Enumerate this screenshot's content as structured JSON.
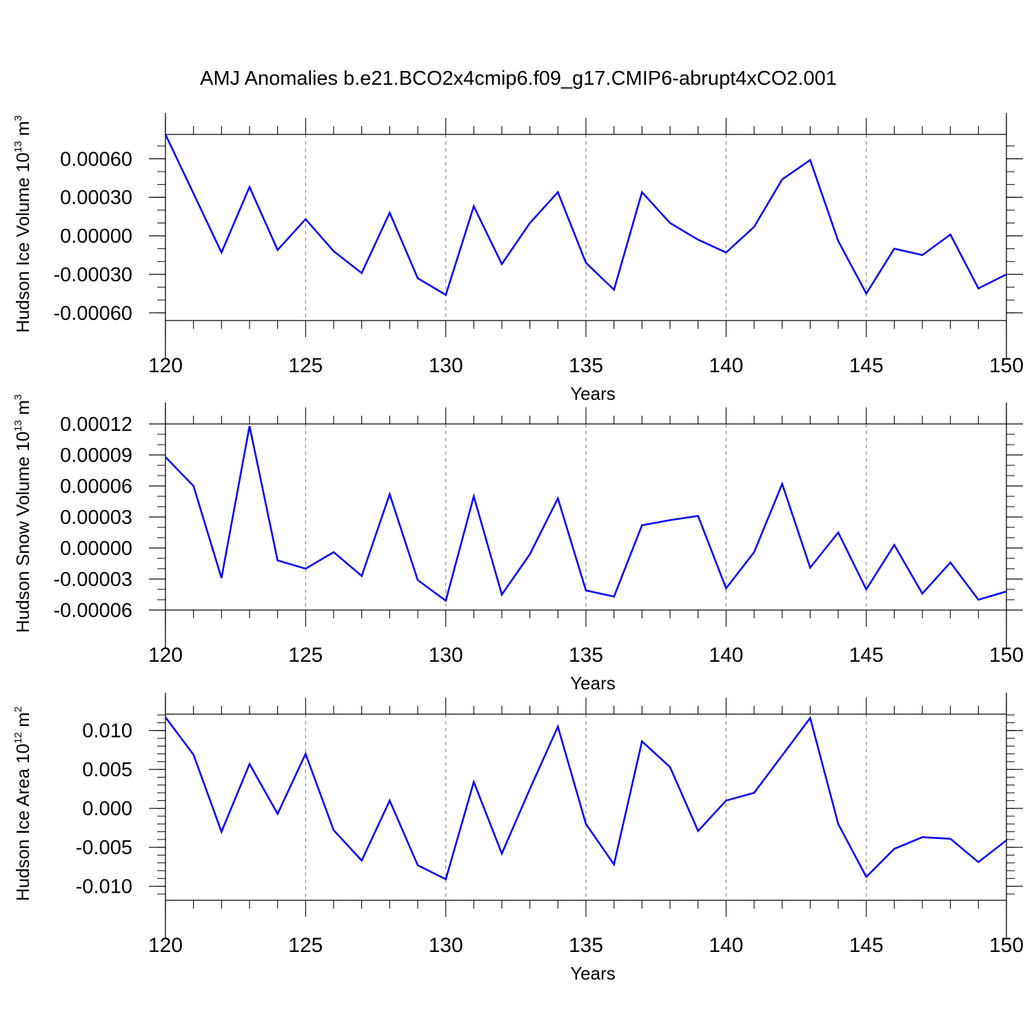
{
  "figure": {
    "title": "AMJ Anomalies b.e21.BCO2x4cmip6.f09_g17.CMIP6-abrupt4xCO2.001",
    "line_color": "#0000ff",
    "grid_color": "#888888"
  },
  "chart_data": [
    {
      "type": "line",
      "title": "AMJ Anomalies b.e21.BCO2x4cmip6.f09_g17.CMIP6-abrupt4xCO2.001",
      "xlabel": "Years",
      "ylabel": {
        "text": "Hudson Ice Volume 10",
        "sup": "13",
        "unit": " m",
        "unit_sup": "3"
      },
      "xlim": [
        120,
        150
      ],
      "ylim": [
        -0.00066,
        0.00079
      ],
      "xticks": [
        "120",
        "125",
        "130",
        "135",
        "140",
        "145",
        "150"
      ],
      "yticks": [
        {
          "value": 0.0006,
          "label": "0.00060"
        },
        {
          "value": 0.0003,
          "label": "0.00030"
        },
        {
          "value": 0.0,
          "label": "0.00000"
        },
        {
          "value": -0.0003,
          "label": "-0.00030"
        },
        {
          "value": -0.0006,
          "label": "-0.00060"
        }
      ],
      "y_minor_step": 0.0001,
      "grid": "x-dashed",
      "x": [
        120,
        121,
        122,
        123,
        124,
        125,
        126,
        127,
        128,
        129,
        130,
        131,
        132,
        133,
        134,
        135,
        136,
        137,
        138,
        139,
        140,
        141,
        142,
        143,
        144,
        145,
        146,
        147,
        148,
        149,
        150
      ],
      "series": [
        {
          "values": [
            0.00079,
            0.00033,
            -0.00013,
            0.00038,
            -0.00011,
            0.00013,
            -0.00012,
            -0.00029,
            0.00018,
            -0.00033,
            -0.00046,
            0.00023,
            -0.00022,
            0.0001,
            0.00034,
            -0.00021,
            -0.00042,
            0.00034,
            0.0001,
            -3e-05,
            -0.00013,
            7e-05,
            0.00044,
            0.00059,
            -4e-05,
            -0.00045,
            -0.0001,
            -0.00015,
            1e-05,
            -0.00041,
            -0.0003
          ]
        }
      ]
    },
    {
      "type": "line",
      "xlabel": "Years",
      "ylabel": {
        "text": "Hudson Snow Volume 10",
        "sup": "13",
        "unit": " m",
        "unit_sup": "3"
      },
      "xlim": [
        120,
        150
      ],
      "ylim": [
        -6e-05,
        0.00012
      ],
      "xticks": [
        "120",
        "125",
        "130",
        "135",
        "140",
        "145",
        "150"
      ],
      "yticks": [
        {
          "value": 0.00012,
          "label": "0.00012"
        },
        {
          "value": 9e-05,
          "label": "0.00009"
        },
        {
          "value": 6e-05,
          "label": "0.00006"
        },
        {
          "value": 3e-05,
          "label": "0.00003"
        },
        {
          "value": 0.0,
          "label": "0.00000"
        },
        {
          "value": -3e-05,
          "label": "-0.00003"
        },
        {
          "value": -6e-05,
          "label": "-0.00006"
        }
      ],
      "y_minor_step": 1e-05,
      "grid": "x-dashed",
      "x": [
        120,
        121,
        122,
        123,
        124,
        125,
        126,
        127,
        128,
        129,
        130,
        131,
        132,
        133,
        134,
        135,
        136,
        137,
        138,
        139,
        140,
        141,
        142,
        143,
        144,
        145,
        146,
        147,
        148,
        149,
        150
      ],
      "series": [
        {
          "values": [
            8.8e-05,
            6e-05,
            -2.9e-05,
            0.000118,
            -1.2e-05,
            -2e-05,
            -4e-06,
            -2.7e-05,
            5.2e-05,
            -3.1e-05,
            -5.1e-05,
            5e-05,
            -4.5e-05,
            -6e-06,
            4.8e-05,
            -4.1e-05,
            -4.7e-05,
            2.2e-05,
            2.7e-05,
            3.1e-05,
            -3.9e-05,
            -4e-06,
            6.2e-05,
            -1.9e-05,
            1.5e-05,
            -4e-05,
            3e-06,
            -4.4e-05,
            -1.4e-05,
            -5e-05,
            -4.2e-05
          ]
        }
      ]
    },
    {
      "type": "line",
      "xlabel": "Years",
      "ylabel": {
        "text": "Hudson Ice Area 10",
        "sup": "12",
        "unit": " m",
        "unit_sup": "2"
      },
      "xlim": [
        120,
        150
      ],
      "ylim": [
        -0.0118,
        0.0121
      ],
      "xticks": [
        "120",
        "125",
        "130",
        "135",
        "140",
        "145",
        "150"
      ],
      "yticks": [
        {
          "value": 0.01,
          "label": "0.010"
        },
        {
          "value": 0.005,
          "label": "0.005"
        },
        {
          "value": 0.0,
          "label": "0.000"
        },
        {
          "value": -0.005,
          "label": "-0.005"
        },
        {
          "value": -0.01,
          "label": "-0.010"
        }
      ],
      "y_minor_step": 0.001,
      "grid": "x-dashed",
      "x": [
        120,
        121,
        122,
        123,
        124,
        125,
        126,
        127,
        128,
        129,
        130,
        131,
        132,
        133,
        134,
        135,
        136,
        137,
        138,
        139,
        140,
        141,
        142,
        143,
        144,
        145,
        146,
        147,
        148,
        149,
        150
      ],
      "series": [
        {
          "values": [
            0.0117,
            0.0069,
            -0.003,
            0.0057,
            -0.0007,
            0.007,
            -0.0028,
            -0.0067,
            0.001,
            -0.0073,
            -0.0091,
            0.0034,
            -0.0058,
            0.0025,
            0.0105,
            -0.002,
            -0.0072,
            0.0086,
            0.0053,
            -0.0029,
            0.001,
            0.002,
            0.0068,
            0.0116,
            -0.002,
            -0.0088,
            -0.0052,
            -0.0037,
            -0.0039,
            -0.0069,
            -0.0041
          ]
        }
      ]
    }
  ]
}
